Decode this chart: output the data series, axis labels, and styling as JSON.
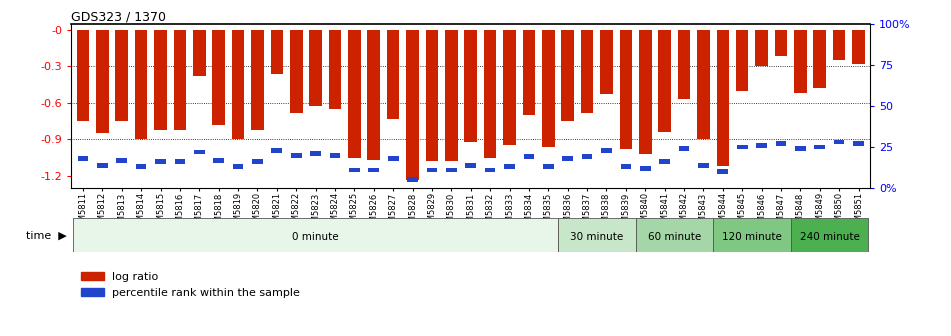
{
  "title": "GDS323 / 1370",
  "samples": [
    "GSM5811",
    "GSM5812",
    "GSM5813",
    "GSM5814",
    "GSM5815",
    "GSM5816",
    "GSM5817",
    "GSM5818",
    "GSM5819",
    "GSM5820",
    "GSM5821",
    "GSM5822",
    "GSM5823",
    "GSM5824",
    "GSM5825",
    "GSM5826",
    "GSM5827",
    "GSM5828",
    "GSM5829",
    "GSM5830",
    "GSM5831",
    "GSM5832",
    "GSM5833",
    "GSM5834",
    "GSM5835",
    "GSM5836",
    "GSM5837",
    "GSM5838",
    "GSM5839",
    "GSM5840",
    "GSM5841",
    "GSM5842",
    "GSM5843",
    "GSM5844",
    "GSM5845",
    "GSM5846",
    "GSM5847",
    "GSM5848",
    "GSM5849",
    "GSM5850",
    "GSM5851"
  ],
  "log_ratio": [
    -0.75,
    -0.85,
    -0.75,
    -0.9,
    -0.82,
    -0.82,
    -0.38,
    -0.78,
    -0.9,
    -0.82,
    -0.36,
    -0.68,
    -0.63,
    -0.65,
    -1.05,
    -1.07,
    -0.73,
    -1.23,
    -1.08,
    -1.08,
    -0.92,
    -1.05,
    -0.95,
    -0.7,
    -0.96,
    -0.75,
    -0.68,
    -0.53,
    -0.98,
    -1.02,
    -0.84,
    -0.57,
    -0.9,
    -1.12,
    -0.5,
    -0.3,
    -0.22,
    -0.52,
    -0.48,
    -0.25,
    -0.28
  ],
  "percentile_rank": [
    18,
    14,
    17,
    13,
    16,
    16,
    22,
    17,
    13,
    16,
    23,
    20,
    21,
    20,
    11,
    11,
    18,
    5,
    11,
    11,
    14,
    11,
    13,
    19,
    13,
    18,
    19,
    23,
    13,
    12,
    16,
    24,
    14,
    10,
    25,
    26,
    27,
    24,
    25,
    28,
    27
  ],
  "time_groups": [
    {
      "label": "0 minute",
      "start": 0,
      "end": 25,
      "color": "#e8f5e9"
    },
    {
      "label": "30 minute",
      "start": 25,
      "end": 29,
      "color": "#c8e6c9"
    },
    {
      "label": "60 minute",
      "start": 29,
      "end": 33,
      "color": "#a5d6a7"
    },
    {
      "label": "120 minute",
      "start": 33,
      "end": 37,
      "color": "#81c784"
    },
    {
      "label": "240 minute",
      "start": 37,
      "end": 41,
      "color": "#4caf50"
    }
  ],
  "bar_color": "#cc2200",
  "blue_color": "#2244cc",
  "ylim_left": [
    -1.3,
    0.05
  ],
  "ylim_right": [
    0,
    100
  ],
  "yticks_left": [
    0,
    -0.3,
    -0.6,
    -0.9,
    -1.2
  ],
  "yticks_right": [
    0,
    25,
    50,
    75,
    100
  ],
  "ytick_labels_right": [
    "0%",
    "25",
    "50",
    "75",
    "100%"
  ],
  "gridlines": [
    -0.3,
    -0.6,
    -0.9
  ]
}
